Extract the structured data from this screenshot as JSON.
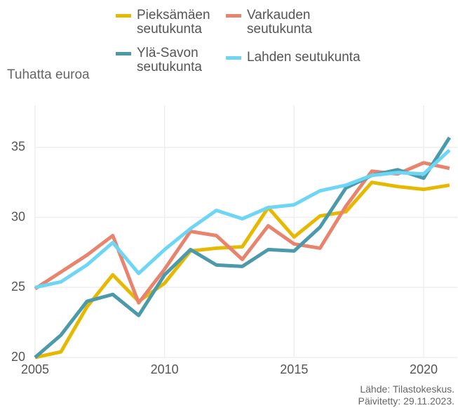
{
  "chart_data": {
    "type": "line",
    "y_label": "Tuhatta euroa",
    "x": [
      2005,
      2006,
      2007,
      2008,
      2009,
      2010,
      2011,
      2012,
      2013,
      2014,
      2015,
      2016,
      2017,
      2018,
      2019,
      2020,
      2021
    ],
    "series": [
      {
        "name": "Pieksämäen seutukunta",
        "color": "#e6b800",
        "values": [
          20.0,
          20.4,
          23.6,
          25.9,
          24.0,
          25.3,
          27.6,
          27.8,
          27.9,
          30.7,
          28.6,
          30.1,
          30.4,
          32.5,
          32.2,
          32.0,
          32.3
        ]
      },
      {
        "name": "Varkauden seutukunta",
        "color": "#e8846d",
        "values": [
          24.9,
          26.1,
          27.3,
          28.7,
          23.9,
          26.3,
          29.0,
          28.7,
          27.0,
          29.4,
          28.1,
          27.8,
          30.8,
          33.3,
          33.1,
          33.9,
          33.5
        ]
      },
      {
        "name": "Ylä-Savon seutukunta",
        "color": "#4a9aaa",
        "values": [
          20.0,
          21.6,
          24.0,
          24.5,
          23.0,
          25.9,
          27.7,
          26.6,
          26.5,
          27.7,
          27.6,
          29.3,
          32.1,
          33.0,
          33.4,
          32.8,
          35.7
        ]
      },
      {
        "name": "Lahden seutukunta",
        "color": "#6ed6f5",
        "values": [
          25.0,
          25.4,
          26.6,
          28.2,
          26.0,
          27.7,
          29.2,
          30.5,
          29.9,
          30.7,
          30.9,
          31.9,
          32.3,
          33.0,
          33.2,
          33.1,
          34.8
        ]
      }
    ],
    "xlim": [
      2005,
      2021.3
    ],
    "xticks": [
      2005,
      2010,
      2015,
      2020
    ],
    "ylim": [
      20,
      38
    ],
    "yticks": [
      20,
      25,
      30,
      35
    ],
    "grid": true,
    "source": [
      "Lähde: Tilastokeskus.",
      "Päivitetty: 29.11.2023."
    ]
  }
}
